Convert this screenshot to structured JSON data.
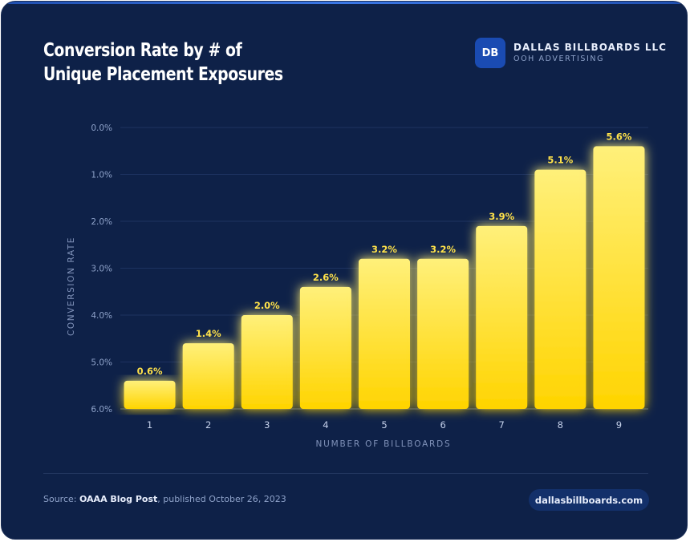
{
  "header": {
    "title_line1": "Conversion Rate by # of",
    "title_line2": "Unique Placement Exposures"
  },
  "brand": {
    "badge": "DB",
    "name": "DALLAS BILLBOARDS LLC",
    "tagline": "OOH ADVERTISING"
  },
  "footer": {
    "source_prefix": "Source: ",
    "source_name": "OAAA Blog Post",
    "source_suffix": ", published October 26, 2023",
    "site": "dallasbillboards.com"
  },
  "colors": {
    "background": "#0e2148",
    "bar_top": "#fff07a",
    "bar_bottom": "#ffd400",
    "value_label": "#ffe24a",
    "tick_label": "#8ea2c9"
  },
  "chart_data": {
    "type": "bar",
    "title": "Conversion Rate by # of Unique Placement Exposures",
    "xlabel": "NUMBER OF BILLBOARDS",
    "ylabel": "CONVERSION RATE",
    "categories": [
      "1",
      "2",
      "3",
      "4",
      "5",
      "6",
      "7",
      "8",
      "9"
    ],
    "values": [
      0.6,
      1.4,
      2.0,
      2.6,
      3.2,
      3.2,
      3.9,
      5.1,
      5.6
    ],
    "value_labels": [
      "0.6%",
      "1.4%",
      "2.0%",
      "2.6%",
      "3.2%",
      "3.2%",
      "3.9%",
      "5.1%",
      "5.6%"
    ],
    "y_ticks": [
      "0.0%",
      "1.0%",
      "2.0%",
      "3.0%",
      "4.0%",
      "5.0%",
      "6.0%"
    ],
    "ylim": [
      0,
      6
    ],
    "grid": true,
    "legend": "none"
  }
}
